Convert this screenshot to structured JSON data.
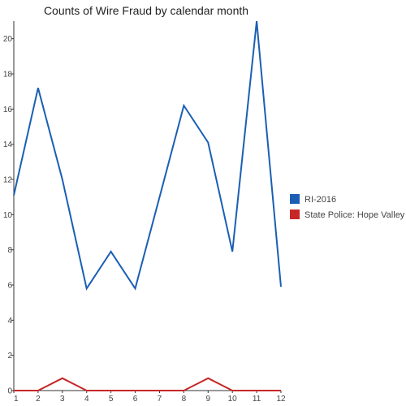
{
  "chart_data": {
    "type": "line",
    "title": "Counts of Wire Fraud by calendar month",
    "xlabel": "",
    "ylabel": "",
    "x": [
      1,
      2,
      3,
      4,
      5,
      6,
      7,
      8,
      9,
      10,
      11,
      12
    ],
    "x_tick_labels": [
      "1",
      "2",
      "3",
      "4",
      "5",
      "6",
      "7",
      "8",
      "9",
      "10",
      "11",
      "12"
    ],
    "ylim": [
      0,
      21
    ],
    "y_ticks": [
      0,
      2,
      4,
      6,
      8,
      10,
      12,
      14,
      16,
      18,
      20
    ],
    "grid": false,
    "legend_position": "right",
    "series": [
      {
        "name": "RI-2016",
        "color": "#1a5fb4",
        "values": [
          11.1,
          17.2,
          12.0,
          5.8,
          7.9,
          5.8,
          11.0,
          16.2,
          14.1,
          7.9,
          21.0,
          5.9
        ]
      },
      {
        "name": "State Police: Hope Valley",
        "color": "#c62828",
        "values": [
          0,
          0,
          0.7,
          0,
          0,
          0,
          0,
          0,
          0.7,
          0,
          0,
          0
        ]
      }
    ]
  }
}
